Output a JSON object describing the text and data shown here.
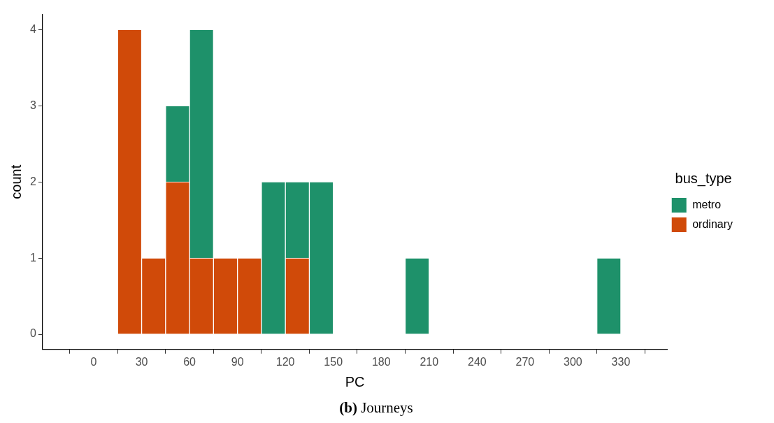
{
  "chart_data": {
    "type": "bar",
    "xlabel": "PC",
    "ylabel": "count",
    "legend_title": "bus_type",
    "x": [
      22.5,
      37.5,
      52.5,
      67.5,
      82.5,
      97.5,
      112.5,
      127.5,
      142.5,
      157.5,
      172.5,
      187.5,
      202.5,
      217.5,
      232.5,
      247.5,
      262.5,
      277.5,
      292.5,
      307.5,
      322.5
    ],
    "series": [
      {
        "name": "ordinary",
        "color": "#d04a09",
        "values": [
          4,
          1,
          2,
          1,
          1,
          1,
          0,
          1,
          0,
          0,
          0,
          0,
          0,
          0,
          0,
          0,
          0,
          0,
          0,
          0,
          0
        ]
      },
      {
        "name": "metro",
        "color": "#1e916a",
        "values": [
          0,
          0,
          1,
          3,
          0,
          0,
          2,
          1,
          2,
          0,
          0,
          0,
          1,
          0,
          0,
          0,
          0,
          0,
          0,
          0,
          1
        ]
      }
    ],
    "stacked": true,
    "xlim": [
      -32,
      359
    ],
    "xticks": [
      0,
      30,
      60,
      90,
      120,
      150,
      180,
      210,
      240,
      270,
      300,
      330
    ],
    "ylim": [
      -0.2,
      4.2
    ],
    "yticks": [
      0,
      1,
      2,
      3,
      4
    ],
    "grid": false,
    "legend": "right",
    "annotations": [
      "(b) Journeys"
    ]
  }
}
